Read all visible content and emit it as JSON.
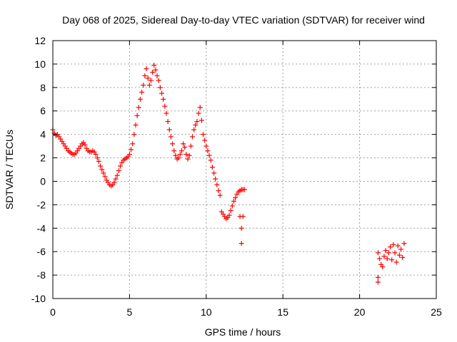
{
  "chart_data": {
    "type": "scatter",
    "title": "Day 068 of 2025, Sidereal Day-to-day VTEC variation (SDTVAR) for receiver wind",
    "xlabel": "GPS time / hours",
    "ylabel": "SDTVAR / TECUs",
    "xlim": [
      0,
      25
    ],
    "ylim": [
      -10,
      12
    ],
    "xticks": [
      0,
      5,
      10,
      15,
      20,
      25
    ],
    "yticks": [
      -10,
      -8,
      -6,
      -4,
      -2,
      0,
      2,
      4,
      6,
      8,
      10,
      12
    ],
    "xtick_labels": [
      "0",
      "5",
      "10",
      "15",
      "20",
      "25"
    ],
    "ytick_labels": [
      "-10",
      "-8",
      "-6",
      "-4",
      "-2",
      "0",
      "2",
      "4",
      "6",
      "8",
      "10",
      "12"
    ],
    "grid": true,
    "marker": "+",
    "series": [
      {
        "name": "SDTVAR",
        "color": "#ff0000",
        "points": [
          [
            0.0,
            4.4
          ],
          [
            0.1,
            4.1
          ],
          [
            0.2,
            3.9
          ],
          [
            0.3,
            4.0
          ],
          [
            0.4,
            3.8
          ],
          [
            0.5,
            3.6
          ],
          [
            0.6,
            3.4
          ],
          [
            0.7,
            3.2
          ],
          [
            0.8,
            3.0
          ],
          [
            0.9,
            2.8
          ],
          [
            1.0,
            2.6
          ],
          [
            1.1,
            2.5
          ],
          [
            1.2,
            2.4
          ],
          [
            1.3,
            2.3
          ],
          [
            1.4,
            2.3
          ],
          [
            1.5,
            2.4
          ],
          [
            1.6,
            2.6
          ],
          [
            1.7,
            2.8
          ],
          [
            1.8,
            3.0
          ],
          [
            1.9,
            3.2
          ],
          [
            2.0,
            3.3
          ],
          [
            2.1,
            3.1
          ],
          [
            2.2,
            2.8
          ],
          [
            2.3,
            2.6
          ],
          [
            2.4,
            2.5
          ],
          [
            2.5,
            2.5
          ],
          [
            2.6,
            2.6
          ],
          [
            2.7,
            2.5
          ],
          [
            2.8,
            2.3
          ],
          [
            2.9,
            2.0
          ],
          [
            3.0,
            1.7
          ],
          [
            3.1,
            1.3
          ],
          [
            3.2,
            1.0
          ],
          [
            3.3,
            0.7
          ],
          [
            3.4,
            0.4
          ],
          [
            3.5,
            0.1
          ],
          [
            3.6,
            -0.1
          ],
          [
            3.7,
            -0.3
          ],
          [
            3.8,
            -0.4
          ],
          [
            3.9,
            -0.3
          ],
          [
            4.0,
            -0.1
          ],
          [
            4.1,
            0.2
          ],
          [
            4.2,
            0.5
          ],
          [
            4.3,
            0.9
          ],
          [
            4.4,
            1.3
          ],
          [
            4.5,
            1.6
          ],
          [
            4.6,
            1.8
          ],
          [
            4.7,
            1.9
          ],
          [
            4.8,
            2.0
          ],
          [
            4.9,
            2.1
          ],
          [
            5.0,
            2.3
          ],
          [
            5.1,
            2.7
          ],
          [
            5.2,
            3.2
          ],
          [
            5.3,
            4.0
          ],
          [
            5.4,
            4.8
          ],
          [
            5.5,
            5.6
          ],
          [
            5.6,
            6.3
          ],
          [
            5.7,
            7.0
          ],
          [
            5.8,
            7.6
          ],
          [
            5.9,
            8.2
          ],
          [
            6.0,
            9.0
          ],
          [
            6.1,
            9.6
          ],
          [
            6.2,
            8.8
          ],
          [
            6.3,
            8.2
          ],
          [
            6.4,
            8.6
          ],
          [
            6.5,
            9.3
          ],
          [
            6.6,
            9.9
          ],
          [
            6.7,
            9.5
          ],
          [
            6.8,
            9.0
          ],
          [
            6.9,
            8.6
          ],
          [
            7.0,
            8.0
          ],
          [
            7.1,
            7.5
          ],
          [
            7.2,
            7.0
          ],
          [
            7.3,
            6.4
          ],
          [
            7.4,
            5.8
          ],
          [
            7.5,
            5.1
          ],
          [
            7.6,
            4.4
          ],
          [
            7.7,
            3.8
          ],
          [
            7.8,
            3.2
          ],
          [
            7.9,
            2.6
          ],
          [
            8.0,
            2.2
          ],
          [
            8.1,
            1.9
          ],
          [
            8.2,
            2.0
          ],
          [
            8.3,
            2.3
          ],
          [
            8.4,
            2.6
          ],
          [
            8.5,
            3.2
          ],
          [
            8.6,
            2.9
          ],
          [
            8.7,
            2.3
          ],
          [
            8.8,
            1.9
          ],
          [
            8.9,
            2.2
          ],
          [
            9.0,
            3.0
          ],
          [
            9.1,
            3.8
          ],
          [
            9.2,
            4.4
          ],
          [
            9.3,
            4.8
          ],
          [
            9.4,
            5.1
          ],
          [
            9.5,
            5.8
          ],
          [
            9.6,
            6.3
          ],
          [
            9.7,
            5.2
          ],
          [
            9.8,
            4.0
          ],
          [
            9.9,
            3.5
          ],
          [
            10.0,
            3.0
          ],
          [
            10.1,
            2.6
          ],
          [
            10.2,
            2.2
          ],
          [
            10.3,
            1.8
          ],
          [
            10.4,
            1.2
          ],
          [
            10.5,
            0.7
          ],
          [
            10.6,
            0.2
          ],
          [
            10.7,
            -0.3
          ],
          [
            10.8,
            -0.8
          ],
          [
            10.9,
            -1.2
          ],
          [
            11.0,
            -2.6
          ],
          [
            11.1,
            -2.8
          ],
          [
            11.2,
            -3.0
          ],
          [
            11.3,
            -3.2
          ],
          [
            11.4,
            -3.1
          ],
          [
            11.5,
            -2.9
          ],
          [
            11.6,
            -2.5
          ],
          [
            11.7,
            -2.1
          ],
          [
            11.8,
            -1.7
          ],
          [
            11.9,
            -1.4
          ],
          [
            12.0,
            -1.1
          ],
          [
            12.1,
            -0.9
          ],
          [
            12.2,
            -0.8
          ],
          [
            12.3,
            -0.7
          ],
          [
            12.4,
            -0.7
          ],
          [
            12.5,
            -0.7
          ],
          [
            12.2,
            -3.0
          ],
          [
            12.4,
            -3.0
          ],
          [
            12.3,
            -4.0
          ],
          [
            12.3,
            -5.3
          ],
          [
            21.2,
            -6.1
          ],
          [
            21.3,
            -6.6
          ],
          [
            21.2,
            -8.2
          ],
          [
            21.2,
            -8.6
          ],
          [
            21.4,
            -7.1
          ],
          [
            21.5,
            -7.3
          ],
          [
            21.6,
            -6.4
          ],
          [
            21.7,
            -5.9
          ],
          [
            21.8,
            -6.6
          ],
          [
            21.9,
            -6.1
          ],
          [
            22.0,
            -5.6
          ],
          [
            22.1,
            -6.7
          ],
          [
            22.2,
            -5.4
          ],
          [
            22.3,
            -6.1
          ],
          [
            22.4,
            -6.9
          ],
          [
            22.5,
            -5.5
          ],
          [
            22.6,
            -6.3
          ],
          [
            22.7,
            -5.8
          ],
          [
            22.8,
            -6.5
          ],
          [
            22.9,
            -5.3
          ]
        ]
      }
    ]
  }
}
